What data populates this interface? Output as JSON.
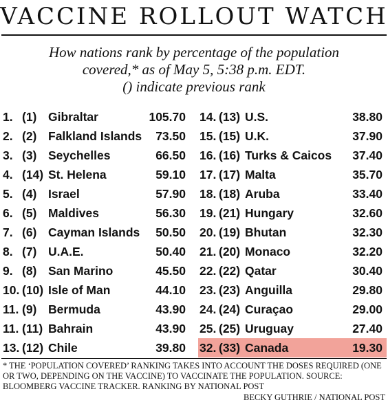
{
  "title": "VACCINE ROLLOUT WATCH",
  "subtitle_lines": [
    "How nations rank by percentage of the population",
    "covered,* as of May 5, 5:38 p.m. EDT.",
    "() indicate previous rank"
  ],
  "footnote": "* THE ‘POPULATION COVERED’ RANKING TAKES INTO ACCOUNT THE DOSES REQUIRED (ONE OR TWO, DEPENDING ON THE VACCINE) TO VACCINATE THE POPULATION. SOURCE: BLOOMBERG VACCINE TRACKER. RANKING BY NATIONAL POST",
  "credit": "BECKY GUTHRIE / NATIONAL POST",
  "colors": {
    "highlight": "#f2a39a",
    "text": "#111111"
  },
  "chart_data": {
    "type": "table",
    "columns": [
      "rank",
      "previous_rank",
      "country",
      "percent_covered"
    ],
    "highlight_country": "Canada",
    "rows": [
      {
        "rank": "1.",
        "prev": "(1)",
        "country": "Gibraltar",
        "value": "105.70"
      },
      {
        "rank": "2.",
        "prev": "(2)",
        "country": "Falkland Islands",
        "value": "73.50"
      },
      {
        "rank": "3.",
        "prev": "(3)",
        "country": "Seychelles",
        "value": "66.50"
      },
      {
        "rank": "4.",
        "prev": "(14)",
        "country": "St. Helena",
        "value": "59.10"
      },
      {
        "rank": "5.",
        "prev": "(4)",
        "country": "Israel",
        "value": "57.90"
      },
      {
        "rank": "6.",
        "prev": "(5)",
        "country": "Maldives",
        "value": "56.30"
      },
      {
        "rank": "7.",
        "prev": "(6)",
        "country": "Cayman Islands",
        "value": "50.50"
      },
      {
        "rank": "8.",
        "prev": "(7)",
        "country": "U.A.E.",
        "value": "50.40"
      },
      {
        "rank": "9.",
        "prev": "(8)",
        "country": "San Marino",
        "value": "45.50"
      },
      {
        "rank": "10.",
        "prev": "(10)",
        "country": "Isle of Man",
        "value": "44.10"
      },
      {
        "rank": "11.",
        "prev": "(9)",
        "country": "Bermuda",
        "value": "43.90"
      },
      {
        "rank": "11.",
        "prev": "(11)",
        "country": "Bahrain",
        "value": "43.90"
      },
      {
        "rank": "13.",
        "prev": "(12)",
        "country": "Chile",
        "value": "39.80"
      },
      {
        "rank": "14.",
        "prev": "(13)",
        "country": "U.S.",
        "value": "38.80"
      },
      {
        "rank": "15.",
        "prev": "(15)",
        "country": "U.K.",
        "value": "37.90"
      },
      {
        "rank": "16.",
        "prev": "(16)",
        "country": "Turks & Caicos",
        "value": "37.40"
      },
      {
        "rank": "17.",
        "prev": "(17)",
        "country": "Malta",
        "value": "35.70"
      },
      {
        "rank": "18.",
        "prev": "(18)",
        "country": "Aruba",
        "value": "33.40"
      },
      {
        "rank": "19.",
        "prev": "(21)",
        "country": "Hungary",
        "value": "32.60"
      },
      {
        "rank": "20.",
        "prev": "(19)",
        "country": "Bhutan",
        "value": "32.30"
      },
      {
        "rank": "21.",
        "prev": "(20)",
        "country": "Monaco",
        "value": "32.20"
      },
      {
        "rank": "22.",
        "prev": "(22)",
        "country": "Qatar",
        "value": "30.40"
      },
      {
        "rank": "23.",
        "prev": "(23)",
        "country": "Anguilla",
        "value": "29.80"
      },
      {
        "rank": "24.",
        "prev": "(24)",
        "country": "Curaçao",
        "value": "29.00"
      },
      {
        "rank": "25.",
        "prev": "(25)",
        "country": "Uruguay",
        "value": "27.40"
      },
      {
        "rank": "32.",
        "prev": "(33)",
        "country": "Canada",
        "value": "19.30"
      }
    ]
  }
}
